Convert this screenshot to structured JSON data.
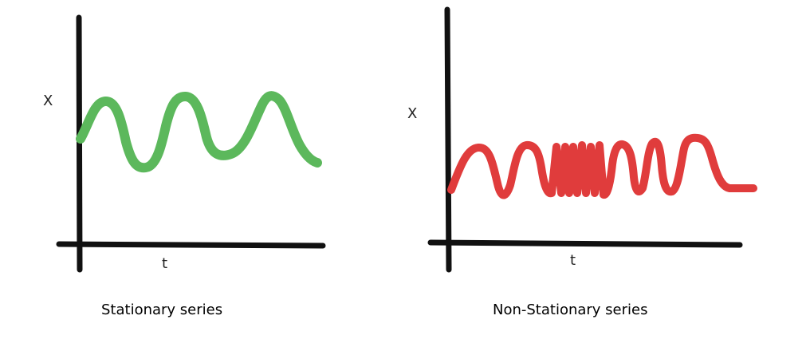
{
  "colors": {
    "axis": "#111111",
    "stationary": "#5cb85c",
    "non_stationary": "#e03c3c"
  },
  "panels": {
    "stationary": {
      "ylabel": "X",
      "xlabel": "t",
      "caption": "Stationary series",
      "curve": "regular sine-like wave with constant amplitude and period"
    },
    "non_stationary": {
      "ylabel": "X",
      "xlabel": "t",
      "caption": "Non-Stationary series",
      "curve": "square-like wave whose frequency varies over time"
    }
  }
}
